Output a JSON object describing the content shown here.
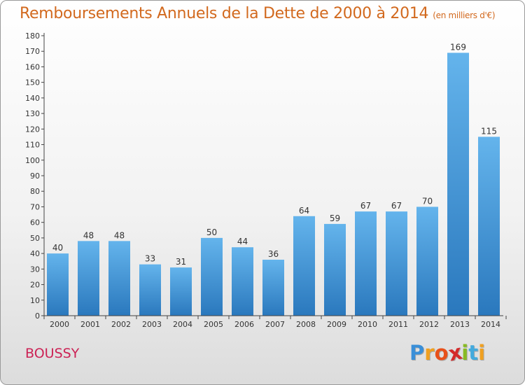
{
  "header": {
    "title": "Remboursements Annuels de la Dette de 2000 à 2014",
    "subtitle": "(en milliers d'€)"
  },
  "footer": {
    "city": "BOUSSY",
    "logo_letters": [
      "P",
      "r",
      "o",
      "x",
      "i",
      "t",
      "i"
    ],
    "logo_colors": [
      "#3a8fd8",
      "#f0a020",
      "#e8501a",
      "#d42a2a",
      "#88bb22",
      "#44aadd",
      "#f0a020"
    ]
  },
  "colors": {
    "bar_top": "#64b4ec",
    "bar_bottom": "#2a78bd",
    "axis": "#444444",
    "grid_tick": "#444444"
  },
  "chart_data": {
    "type": "bar",
    "title": "Remboursements Annuels de la Dette de 2000 à 2014",
    "xlabel": "",
    "ylabel": "",
    "categories": [
      "2000",
      "2001",
      "2002",
      "2003",
      "2004",
      "2005",
      "2006",
      "2007",
      "2008",
      "2009",
      "2010",
      "2011",
      "2012",
      "2013",
      "2014"
    ],
    "values": [
      40,
      48,
      48,
      33,
      31,
      50,
      44,
      36,
      64,
      59,
      67,
      67,
      70,
      169,
      115
    ],
    "ylim": [
      0,
      180
    ],
    "ytick_step": 10,
    "grid": false,
    "show_data_labels": true
  }
}
